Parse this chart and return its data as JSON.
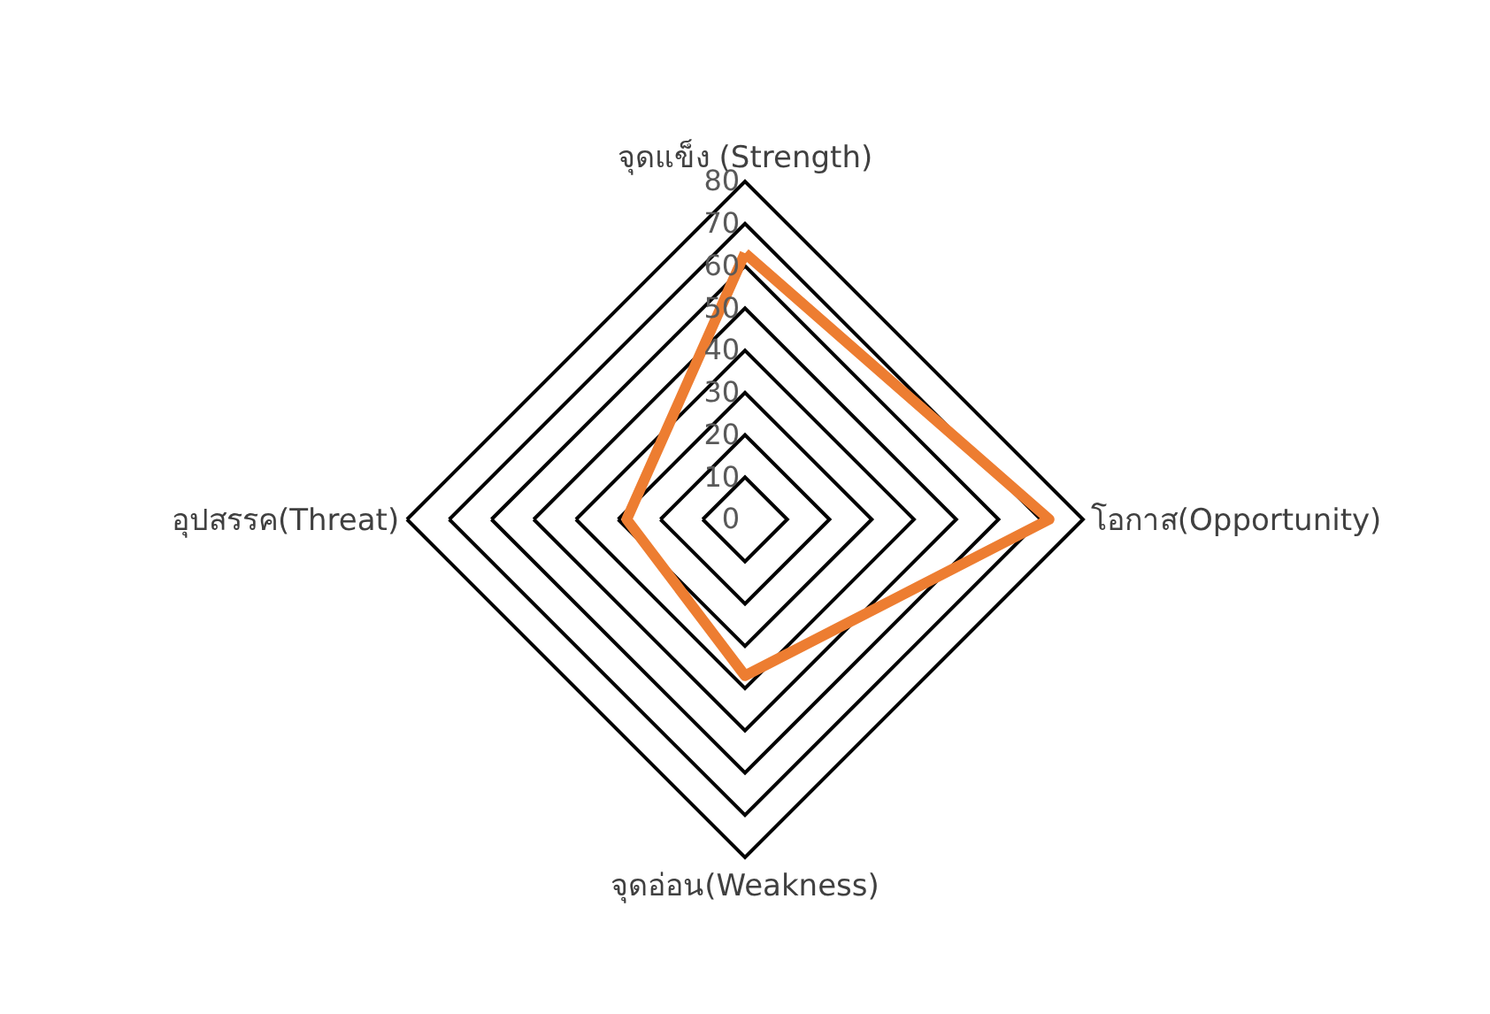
{
  "chart_data": {
    "type": "radar",
    "categories": [
      "จุดแข็ง (Strength)",
      "โอกาส(Opportunity)",
      "จุดอ่อน(Weakness)",
      "อุปสรรค(Threat)"
    ],
    "series": [
      {
        "color": "#ed7d31",
        "values": [
          63,
          72,
          37,
          28
        ]
      }
    ],
    "ylim": [
      0,
      80
    ],
    "yticks": [
      0,
      10,
      20,
      30,
      40,
      50,
      60,
      70,
      80
    ],
    "grid": true,
    "line_style": "solid"
  }
}
